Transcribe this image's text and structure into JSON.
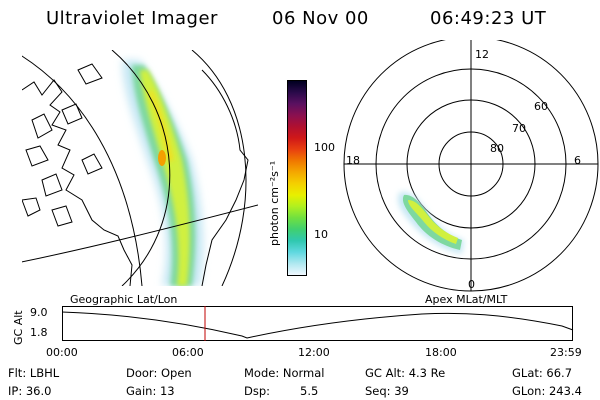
{
  "header": {
    "instrument": "Ultraviolet Imager",
    "date": "06 Nov 00",
    "time": "06:49:23 UT"
  },
  "geo_panel": {
    "label": "Geographic Lat/Lon"
  },
  "colorbar": {
    "unit_label": "photon cm⁻²s⁻¹",
    "ticks": [
      "100",
      "10"
    ],
    "colors": [
      "#000020",
      "#2a0a4a",
      "#5a1060",
      "#8a1050",
      "#b01030",
      "#d01818",
      "#e84010",
      "#f07800",
      "#f4a800",
      "#f4d000",
      "#e8f000",
      "#b0f020",
      "#70e040",
      "#40d070",
      "#30c8b0",
      "#60d8e0",
      "#b0e8f0",
      "#f0f8ff"
    ]
  },
  "polar_panel": {
    "label": "Apex MLat/MLT",
    "mlt_labels": [
      "12",
      "18",
      "6",
      "0"
    ],
    "lat_labels": [
      "60",
      "70",
      "80"
    ]
  },
  "alt_plot": {
    "ylabel": "GC Alt",
    "yticks": [
      "9.0",
      "1.8"
    ],
    "xticks": [
      "00:00",
      "06:00",
      "12:00",
      "18:00",
      "23:59"
    ]
  },
  "info": {
    "col1": [
      "Flt: LBHL",
      "IP: 36.0"
    ],
    "col2": [
      "Door: Open",
      "Gain: 13"
    ],
    "col3a": [
      "Mode: Normal",
      "Dsp:"
    ],
    "col3b": [
      "",
      "5.5"
    ],
    "col4": [
      "GC Alt: 4.3 Re",
      "Seq: 39"
    ],
    "col5": [
      "GLat: 66.7",
      "GLon: 243.4"
    ]
  }
}
